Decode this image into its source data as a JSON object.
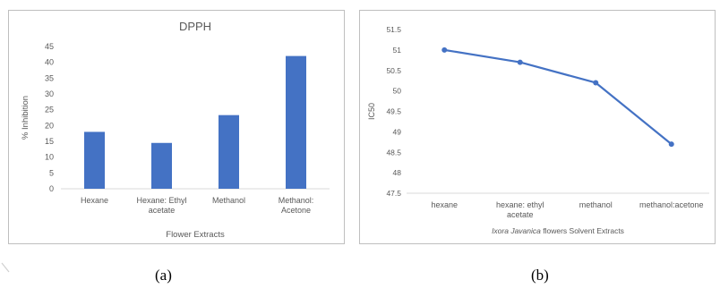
{
  "chart_data": [
    {
      "type": "bar",
      "title": "DPPH",
      "xlabel": "Flower Extracts",
      "ylabel": "% Inhibition",
      "categories": [
        [
          "Hexane"
        ],
        [
          "Hexane: Ethyl",
          "acetate"
        ],
        [
          "Methanol"
        ],
        [
          "Methanol:",
          "Acetone"
        ]
      ],
      "values": [
        18,
        14.5,
        23.3,
        42
      ],
      "ylim": [
        0,
        45
      ],
      "yticks": [
        "0",
        "5",
        "10",
        "15",
        "20",
        "25",
        "30",
        "35",
        "40",
        "45"
      ],
      "color": "#4472c4",
      "grid": false
    },
    {
      "type": "line",
      "title": "",
      "xlabel_parts": [
        {
          "text": "Ixora Javanica",
          "italic": true
        },
        {
          "text": " flowers Solvent Extracts",
          "italic": false
        }
      ],
      "ylabel": "IC50",
      "categories": [
        [
          "hexane"
        ],
        [
          "hexane: ethyl",
          "acetate"
        ],
        [
          "methanol"
        ],
        [
          "methanol:acetone"
        ]
      ],
      "values": [
        51.0,
        50.7,
        50.2,
        48.7
      ],
      "ylim": [
        47.5,
        51.5
      ],
      "yticks": [
        "47.5",
        "48",
        "48.5",
        "49",
        "49.5",
        "50",
        "50.5",
        "51",
        "51.5"
      ],
      "color": "#4472c4",
      "grid": false
    }
  ],
  "captions": {
    "a": "(a)",
    "b": "(b)"
  }
}
